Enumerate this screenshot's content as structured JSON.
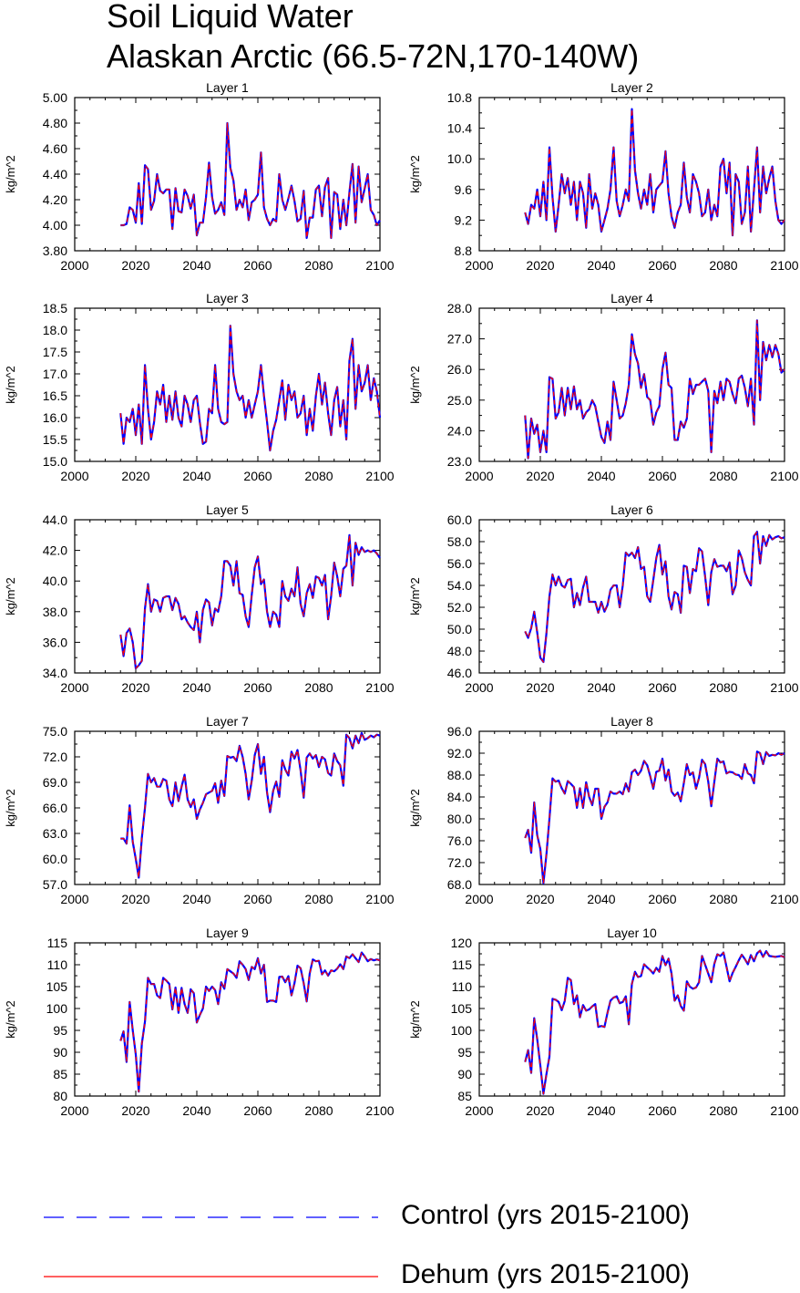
{
  "title_line1": "Soil Liquid Water",
  "title_line2": "Alaskan Arctic (66.5-72N,170-140W)",
  "legend": [
    {
      "label": "Control (yrs 2015-2100)",
      "color": "#0000ff",
      "style": "dashed"
    },
    {
      "label": "Dehum (yrs 2015-2100)",
      "color": "#ff0000",
      "style": "solid"
    }
  ],
  "colors": {
    "control": "#0000ff",
    "dehum": "#ff0000"
  },
  "chart_data": [
    {
      "type": "line",
      "title": "Layer 1",
      "ylabel": "kg/m^2",
      "xlim": [
        2000,
        2100
      ],
      "ylim": [
        3.8,
        5.0
      ],
      "yticks": [
        "3.80",
        "4.00",
        "4.20",
        "4.40",
        "4.60",
        "4.80",
        "5.00"
      ],
      "xticks": [
        "2000",
        "2020",
        "2040",
        "2060",
        "2080",
        "2100"
      ],
      "x_start": 2015,
      "values": [
        4.0,
        4.0,
        4.01,
        4.14,
        4.12,
        4.02,
        4.33,
        4.01,
        4.47,
        4.44,
        4.12,
        4.19,
        4.4,
        4.27,
        4.25,
        4.28,
        4.28,
        3.97,
        4.29,
        4.11,
        4.1,
        4.28,
        4.23,
        4.13,
        4.24,
        3.92,
        4.02,
        4.02,
        4.22,
        4.49,
        4.22,
        4.09,
        4.12,
        4.18,
        4.08,
        4.8,
        4.45,
        4.35,
        4.12,
        4.2,
        4.14,
        4.28,
        4.04,
        4.18,
        4.2,
        4.24,
        4.57,
        4.14,
        4.05,
        4.0,
        4.05,
        4.03,
        4.4,
        4.2,
        4.12,
        4.21,
        4.31,
        4.19,
        4.03,
        4.05,
        4.27,
        3.9,
        4.06,
        4.06,
        4.28,
        4.31,
        4.07,
        4.3,
        4.37,
        3.9,
        4.26,
        4.24,
        3.97,
        4.2,
        4.0,
        4.26,
        4.48,
        4.02,
        4.46,
        4.18,
        4.29,
        4.4,
        4.12,
        4.08,
        4.0,
        4.04
      ]
    },
    {
      "type": "line",
      "title": "Layer 2",
      "ylabel": "kg/m^2",
      "xlim": [
        2000,
        2100
      ],
      "ylim": [
        8.8,
        10.8
      ],
      "yticks": [
        "8.8",
        "9.2",
        "9.6",
        "10.0",
        "10.4",
        "10.8"
      ],
      "xticks": [
        "2000",
        "2020",
        "2040",
        "2060",
        "2080",
        "2100"
      ],
      "x_start": 2015,
      "values": [
        9.3,
        9.15,
        9.4,
        9.35,
        9.6,
        9.25,
        9.7,
        9.2,
        10.15,
        9.5,
        9.05,
        9.4,
        9.8,
        9.55,
        9.75,
        9.4,
        9.7,
        9.2,
        9.7,
        9.55,
        9.1,
        9.8,
        9.35,
        9.55,
        9.4,
        9.05,
        9.2,
        9.35,
        9.6,
        10.15,
        9.45,
        9.25,
        9.4,
        9.6,
        9.45,
        10.65,
        9.85,
        9.55,
        9.35,
        9.6,
        9.4,
        9.8,
        9.3,
        9.6,
        9.65,
        9.7,
        10.1,
        9.55,
        9.25,
        9.1,
        9.3,
        9.4,
        9.95,
        9.5,
        9.3,
        9.8,
        9.7,
        9.55,
        9.25,
        9.3,
        9.6,
        9.2,
        9.4,
        9.25,
        9.9,
        10.0,
        9.55,
        9.95,
        9.0,
        9.8,
        9.7,
        9.15,
        9.3,
        9.9,
        9.05,
        9.6,
        10.15,
        9.3,
        9.9,
        9.55,
        9.75,
        9.9,
        9.45,
        9.2,
        9.15,
        9.2
      ]
    },
    {
      "type": "line",
      "title": "Layer 3",
      "ylabel": "kg/m^2",
      "xlim": [
        2000,
        2100
      ],
      "ylim": [
        15.0,
        18.5
      ],
      "yticks": [
        "15.0",
        "15.5",
        "16.0",
        "16.5",
        "17.0",
        "17.5",
        "18.0",
        "18.5"
      ],
      "xticks": [
        "2000",
        "2020",
        "2040",
        "2060",
        "2080",
        "2100"
      ],
      "x_start": 2015,
      "values": [
        16.1,
        15.4,
        16.0,
        15.9,
        16.2,
        15.6,
        16.3,
        15.4,
        17.2,
        16.2,
        15.5,
        15.9,
        16.6,
        16.3,
        16.75,
        15.9,
        16.5,
        15.95,
        16.6,
        16.0,
        15.8,
        16.5,
        16.3,
        15.9,
        16.4,
        16.5,
        15.9,
        15.4,
        15.45,
        16.2,
        16.1,
        17.2,
        16.2,
        15.9,
        15.85,
        15.9,
        18.1,
        17.0,
        16.6,
        16.4,
        16.5,
        16.0,
        16.4,
        16.0,
        16.3,
        16.6,
        17.2,
        16.5,
        15.9,
        15.25,
        15.7,
        15.95,
        16.4,
        16.85,
        15.95,
        16.75,
        16.4,
        16.6,
        16.0,
        16.1,
        16.5,
        15.6,
        16.2,
        15.7,
        16.5,
        17.0,
        16.3,
        16.8,
        16.1,
        15.6,
        16.4,
        16.7,
        15.8,
        16.4,
        15.5,
        17.3,
        17.8,
        16.2,
        17.2,
        16.6,
        16.8,
        17.2,
        16.4,
        16.9,
        16.6,
        16.0
      ]
    },
    {
      "type": "line",
      "title": "Layer 4",
      "ylabel": "kg/m^2",
      "xlim": [
        2000,
        2100
      ],
      "ylim": [
        23.0,
        28.0
      ],
      "yticks": [
        "23.0",
        "24.0",
        "25.0",
        "26.0",
        "27.0",
        "28.0"
      ],
      "xticks": [
        "2000",
        "2020",
        "2040",
        "2060",
        "2080",
        "2100"
      ],
      "x_start": 2015,
      "values": [
        24.5,
        23.1,
        24.4,
        23.9,
        24.2,
        23.3,
        24.0,
        23.3,
        25.75,
        25.7,
        24.4,
        24.6,
        25.4,
        24.5,
        25.4,
        24.7,
        25.45,
        24.7,
        25.0,
        24.4,
        24.6,
        24.7,
        25.0,
        24.8,
        24.3,
        23.8,
        23.6,
        24.3,
        23.7,
        25.6,
        25.0,
        24.4,
        24.5,
        24.9,
        25.5,
        27.15,
        26.5,
        26.2,
        25.4,
        25.85,
        25.1,
        25.0,
        24.2,
        24.6,
        24.8,
        26.0,
        26.55,
        25.5,
        25.4,
        23.7,
        23.7,
        24.3,
        24.1,
        24.4,
        25.7,
        25.2,
        25.5,
        25.5,
        25.6,
        25.7,
        25.3,
        23.3,
        25.3,
        24.9,
        25.6,
        25.0,
        25.7,
        25.6,
        25.2,
        24.9,
        25.7,
        25.8,
        25.4,
        24.8,
        25.7,
        24.2,
        27.6,
        25.0,
        26.9,
        26.3,
        26.8,
        26.4,
        26.8,
        26.5,
        25.9,
        26.0
      ]
    },
    {
      "type": "line",
      "title": "Layer 5",
      "ylabel": "kg/m^2",
      "xlim": [
        2000,
        2100
      ],
      "ylim": [
        34.0,
        44.0
      ],
      "yticks": [
        "34.0",
        "36.0",
        "38.0",
        "40.0",
        "42.0",
        "44.0"
      ],
      "xticks": [
        "2000",
        "2020",
        "2040",
        "2060",
        "2080",
        "2100"
      ],
      "x_start": 2015,
      "values": [
        36.5,
        35.1,
        36.6,
        36.9,
        36.0,
        34.3,
        34.5,
        34.8,
        38.2,
        39.8,
        38.0,
        38.8,
        38.7,
        38.0,
        38.9,
        39.0,
        39.0,
        38.1,
        38.9,
        38.5,
        37.5,
        37.7,
        37.3,
        37.0,
        36.8,
        38.0,
        36.0,
        38.1,
        38.8,
        38.6,
        37.1,
        38.2,
        38.0,
        39.0,
        41.3,
        41.3,
        41.0,
        39.7,
        41.3,
        39.2,
        39.1,
        37.7,
        37.0,
        39.1,
        40.9,
        41.6,
        39.8,
        40.1,
        38.0,
        37.0,
        38.0,
        37.8,
        37.0,
        40.0,
        39.0,
        38.7,
        39.5,
        39.0,
        40.9,
        38.5,
        37.7,
        39.2,
        39.8,
        38.9,
        40.3,
        40.2,
        39.7,
        40.4,
        37.5,
        39.0,
        41.2,
        40.3,
        39.0,
        40.8,
        41.0,
        43.0,
        39.7,
        42.5,
        41.7,
        42.2,
        41.9,
        42.0,
        41.9,
        42.0,
        41.8,
        41.5
      ]
    },
    {
      "type": "line",
      "title": "Layer 6",
      "ylabel": "kg/m^2",
      "xlim": [
        2000,
        2100
      ],
      "ylim": [
        46.0,
        60.0
      ],
      "yticks": [
        "46.0",
        "48.0",
        "50.0",
        "52.0",
        "54.0",
        "56.0",
        "58.0",
        "60.0"
      ],
      "xticks": [
        "2000",
        "2020",
        "2040",
        "2060",
        "2080",
        "2100"
      ],
      "x_start": 2015,
      "values": [
        49.8,
        49.2,
        50.1,
        51.6,
        49.7,
        47.4,
        47.0,
        49.6,
        53.0,
        55.0,
        54.0,
        54.8,
        54.0,
        53.8,
        54.5,
        54.6,
        52.0,
        53.3,
        52.2,
        53.8,
        54.8,
        52.5,
        52.5,
        52.5,
        51.5,
        52.5,
        51.6,
        52.2,
        53.6,
        54.0,
        54.0,
        52.0,
        54.0,
        57.0,
        56.7,
        57.0,
        56.5,
        57.5,
        55.5,
        55.7,
        53.0,
        52.5,
        54.5,
        56.5,
        57.7,
        55.0,
        56.2,
        53.0,
        51.8,
        53.4,
        53.2,
        51.5,
        55.8,
        55.7,
        53.3,
        55.5,
        55.3,
        57.4,
        57.1,
        54.8,
        52.2,
        55.2,
        56.4,
        55.7,
        55.8,
        55.8,
        55.3,
        56.1,
        53.2,
        54.0,
        57.2,
        56.5,
        55.2,
        54.5,
        54.0,
        58.5,
        58.9,
        56.0,
        58.5,
        57.6,
        58.6,
        58.2,
        58.4,
        58.5,
        58.3,
        58.4
      ]
    },
    {
      "type": "line",
      "title": "Layer 7",
      "ylabel": "kg/m^2",
      "xlim": [
        2000,
        2100
      ],
      "ylim": [
        57.0,
        75.0
      ],
      "yticks": [
        "57.0",
        "60.0",
        "63.0",
        "66.0",
        "69.0",
        "72.0",
        "75.0"
      ],
      "xticks": [
        "2000",
        "2020",
        "2040",
        "2060",
        "2080",
        "2100"
      ],
      "x_start": 2015,
      "values": [
        62.4,
        62.4,
        61.8,
        66.3,
        62.0,
        60.0,
        57.8,
        62.5,
        66.0,
        70.0,
        69.0,
        69.5,
        68.5,
        68.5,
        69.4,
        69.2,
        67.0,
        66.2,
        69.0,
        66.8,
        68.5,
        69.9,
        67.0,
        66.1,
        67.0,
        64.7,
        65.8,
        66.6,
        67.6,
        67.8,
        68.0,
        68.9,
        66.6,
        69.2,
        67.4,
        72.1,
        71.9,
        72.0,
        71.5,
        73.3,
        72.0,
        70.0,
        67.0,
        69.2,
        72.2,
        73.5,
        70.0,
        72.0,
        67.8,
        65.5,
        68.0,
        69.1,
        67.3,
        71.6,
        70.5,
        69.8,
        72.6,
        71.8,
        72.8,
        70.4,
        67.2,
        71.9,
        72.4,
        71.8,
        72.2,
        70.8,
        72.0,
        71.7,
        70.1,
        69.8,
        72.4,
        71.5,
        71.0,
        68.6,
        74.6,
        74.2,
        73.0,
        74.5,
        73.6,
        74.8,
        74.0,
        74.2,
        74.5,
        74.3,
        74.6,
        74.5
      ]
    },
    {
      "type": "line",
      "title": "Layer 8",
      "ylabel": "kg/m^2",
      "xlim": [
        2000,
        2100
      ],
      "ylim": [
        68.0,
        96.0
      ],
      "yticks": [
        "68.0",
        "72.0",
        "76.0",
        "80.0",
        "84.0",
        "88.0",
        "92.0",
        "96.0"
      ],
      "xticks": [
        "2000",
        "2020",
        "2040",
        "2060",
        "2080",
        "2100"
      ],
      "x_start": 2015,
      "values": [
        76.5,
        78.0,
        73.8,
        83.0,
        77.0,
        74.5,
        68.2,
        73.5,
        80.0,
        87.4,
        86.8,
        87.0,
        85.6,
        84.6,
        86.9,
        86.4,
        85.8,
        82.0,
        85.6,
        82.0,
        86.7,
        84.0,
        82.5,
        85.5,
        85.5,
        80.0,
        82.2,
        83.0,
        85.0,
        84.6,
        84.6,
        85.0,
        84.5,
        86.5,
        85.0,
        88.5,
        89.0,
        88.0,
        88.8,
        90.6,
        89.8,
        87.8,
        85.5,
        88.6,
        88.8,
        91.0,
        87.0,
        89.0,
        85.0,
        84.2,
        84.8,
        83.2,
        86.5,
        90.0,
        88.0,
        88.5,
        85.5,
        87.5,
        90.8,
        90.0,
        86.8,
        82.3,
        86.8,
        91.0,
        90.3,
        90.5,
        88.3,
        88.6,
        88.5,
        88.1,
        88.0,
        87.3,
        90.0,
        88.3,
        88.0,
        86.5,
        92.3,
        92.0,
        90.0,
        92.2,
        91.5,
        91.7,
        91.6,
        92.0,
        91.7,
        92.0
      ]
    },
    {
      "type": "line",
      "title": "Layer 9",
      "ylabel": "kg/m^2",
      "xlim": [
        2000,
        2100
      ],
      "ylim": [
        80,
        115
      ],
      "yticks": [
        "80",
        "85",
        "90",
        "95",
        "100",
        "105",
        "110",
        "115"
      ],
      "xticks": [
        "2000",
        "2020",
        "2040",
        "2060",
        "2080",
        "2100"
      ],
      "x_start": 2015,
      "values": [
        92.6,
        94.8,
        87.8,
        101.5,
        95.0,
        89.5,
        81.0,
        92.0,
        97.0,
        107.0,
        105.6,
        105.6,
        103.0,
        102.4,
        107.0,
        106.4,
        105.6,
        99.8,
        104.8,
        99.0,
        104.7,
        101.0,
        99.0,
        104.4,
        103.5,
        96.8,
        98.5,
        100.0,
        105.0,
        104.0,
        105.0,
        104.2,
        101.0,
        106.0,
        104.5,
        109.0,
        108.5,
        108.0,
        107.0,
        110.8,
        110.0,
        109.0,
        106.5,
        109.5,
        109.0,
        111.5,
        108.0,
        110.0,
        101.5,
        101.8,
        101.8,
        101.5,
        107.2,
        107.3,
        106.0,
        107.4,
        103.0,
        105.8,
        109.8,
        109.2,
        105.8,
        101.6,
        108.0,
        111.2,
        110.8,
        110.9,
        107.8,
        108.7,
        107.5,
        108.7,
        108.5,
        109.1,
        110.1,
        109.0,
        111.9,
        111.5,
        112.4,
        111.5,
        110.6,
        112.8,
        111.9,
        110.8,
        111.3,
        111.0,
        111.2,
        111.0
      ]
    },
    {
      "type": "line",
      "title": "Layer 10",
      "ylabel": "kg/m^2",
      "xlim": [
        2000,
        2100
      ],
      "ylim": [
        85,
        120
      ],
      "yticks": [
        "85",
        "90",
        "95",
        "100",
        "105",
        "110",
        "115",
        "120"
      ],
      "xticks": [
        "2000",
        "2020",
        "2040",
        "2060",
        "2080",
        "2100"
      ],
      "x_start": 2015,
      "values": [
        92.8,
        95.5,
        90.3,
        102.8,
        98.0,
        92.0,
        85.5,
        90.0,
        94.0,
        107.2,
        107.0,
        106.5,
        104.6,
        106.7,
        112.0,
        111.5,
        106.0,
        108.0,
        103.0,
        105.8,
        104.5,
        104.8,
        105.5,
        106.0,
        100.8,
        101.0,
        100.8,
        104.0,
        106.8,
        107.5,
        107.8,
        106.2,
        106.5,
        107.8,
        101.4,
        110.6,
        113.4,
        112.2,
        112.4,
        115.1,
        114.4,
        113.8,
        113.0,
        114.3,
        113.4,
        117.0,
        114.9,
        116.4,
        113.0,
        106.8,
        108.0,
        105.6,
        104.5,
        111.2,
        110.0,
        109.5,
        109.8,
        111.0,
        117.0,
        115.0,
        113.0,
        111.0,
        115.2,
        117.4,
        117.0,
        117.8,
        114.5,
        111.2,
        113.1,
        114.5,
        116.0,
        117.3,
        116.3,
        115.1,
        117.2,
        115.8,
        117.6,
        118.2,
        116.8,
        118.1,
        117.0,
        116.9,
        116.8,
        116.9,
        117.0,
        116.7
      ]
    }
  ]
}
